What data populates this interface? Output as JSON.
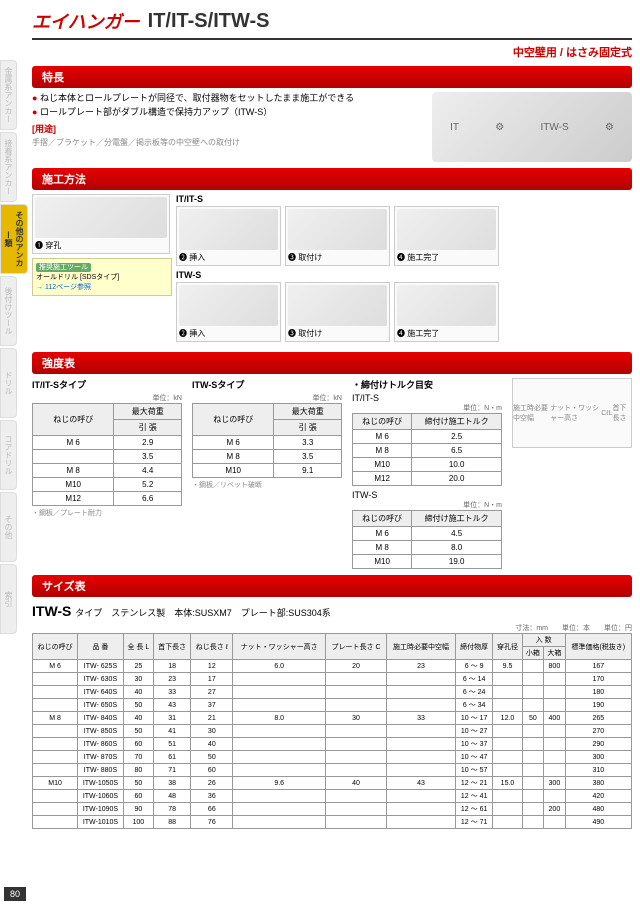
{
  "page_number": "80",
  "header": {
    "logo": "エイハンガー",
    "model": "IT/IT-S/ITW-S",
    "subtitle": "中空壁用 / はさみ固定式"
  },
  "side_tabs": {
    "items": [
      "金属系アンカー",
      "接着系アンカー",
      "その他のアンカー類",
      "後付けツール",
      "ドリル",
      "コアドリル",
      "その他",
      "索引"
    ],
    "active_index": 2
  },
  "sections": {
    "features": "特長",
    "method": "施工方法",
    "strength": "強度表",
    "size": "サイズ表"
  },
  "features": {
    "items": [
      "ねじ本体とロールプレートが同径で、取付器物をセットしたまま施工ができる",
      "ロールプレート部がダブル構造で保持力アップ（ITW-S）"
    ],
    "usage_label": "[用途]",
    "usage_text": "手摺／ブラケット／分電盤／掲示板等の中空壁への取付け",
    "img_labels": {
      "it": "IT",
      "itws": "ITW-S"
    }
  },
  "method": {
    "row1_label": "IT/IT-S",
    "row2_label": "ITW-S",
    "steps_a": [
      "❶ 穿孔",
      "❷ 挿入",
      "❸ 取付け",
      "❹ 施工完了"
    ],
    "steps_b": [
      "❷ 挿入",
      "❸ 取付け",
      "❹ 施工完了"
    ],
    "tool": {
      "tag": "推奨施工ツール",
      "text": "オールドリル [SDSタイプ]",
      "ref": "→ 112ページ参照"
    }
  },
  "strength": {
    "colors": {
      "header_bg": "#eeeeee",
      "border": "#999999"
    },
    "it_table": {
      "title": "IT/IT-Sタイプ",
      "unit": "単位：kN",
      "headers": [
        "ねじの呼び",
        "最大荷重",
        "引 張"
      ],
      "rows": [
        [
          "M 6",
          "2.9"
        ],
        [
          "",
          "3.5"
        ],
        [
          "M 8",
          "4.4"
        ],
        [
          "M10",
          "5.2"
        ],
        [
          "M12",
          "6.6"
        ]
      ],
      "note": "・鋼板／プレート耐力"
    },
    "itw_table": {
      "title": "ITW-Sタイプ",
      "unit": "単位：kN",
      "rows": [
        [
          "M 6",
          "3.3"
        ],
        [
          "M 8",
          "3.5"
        ],
        [
          "M10",
          "9.1"
        ]
      ],
      "note": "・鋼板／リベット破断"
    },
    "torque_it": {
      "title": "・締付けトルク目安",
      "subtitle": "IT/IT-S",
      "unit": "単位：N・m",
      "headers": [
        "ねじの呼び",
        "締付け施工トルク"
      ],
      "rows": [
        [
          "M 6",
          "2.5"
        ],
        [
          "M 8",
          "6.5"
        ],
        [
          "M10",
          "10.0"
        ],
        [
          "M12",
          "20.0"
        ]
      ]
    },
    "torque_itw": {
      "subtitle": "ITW-S",
      "unit": "単位：N・m",
      "rows": [
        [
          "M 6",
          "4.5"
        ],
        [
          "M 8",
          "8.0"
        ],
        [
          "M10",
          "19.0"
        ]
      ]
    },
    "diagram_labels": [
      "施工時必要中空幅",
      "ナット・ワッシャー高さ",
      "C",
      "ℓ",
      "L",
      "首下長さ"
    ]
  },
  "size": {
    "title": "ITW-S",
    "title_suffix": "タイプ　ステンレス製　本体:SUSXM7　プレート部:SUS304系",
    "units": "寸法：mm　　単位：本　　単位：円",
    "headers": [
      "ねじの呼び",
      "品 番",
      "全 長 L",
      "首下長さ",
      "ねじ長さ ℓ",
      "ナット・ワッシャー高さ",
      "プレート長さ C",
      "施工時必要中空幅",
      "締付物厚",
      "穿孔径",
      "小箱",
      "大箱",
      "標準価格(税抜き)"
    ],
    "header_group": "入 数",
    "rows": [
      {
        "size": "M 6",
        "code": "ITW- 625S",
        "L": "25",
        "kubi": "18",
        "neji": "12",
        "nw": "6.0",
        "C": "20",
        "kuu": "23",
        "atsu": "6 ～ 9",
        "kei": "9.5",
        "s": "",
        "l": "800",
        "price": "167"
      },
      {
        "size": "",
        "code": "ITW- 630S",
        "L": "30",
        "kubi": "23",
        "neji": "17",
        "nw": "",
        "C": "",
        "kuu": "",
        "atsu": "6 ～ 14",
        "kei": "",
        "s": "",
        "l": "",
        "price": "170"
      },
      {
        "size": "",
        "code": "ITW- 640S",
        "L": "40",
        "kubi": "33",
        "neji": "27",
        "nw": "",
        "C": "",
        "kuu": "",
        "atsu": "6 ～ 24",
        "kei": "",
        "s": "",
        "l": "",
        "price": "180"
      },
      {
        "size": "",
        "code": "ITW- 650S",
        "L": "50",
        "kubi": "43",
        "neji": "37",
        "nw": "",
        "C": "",
        "kuu": "",
        "atsu": "6 ～ 34",
        "kei": "",
        "s": "",
        "l": "",
        "price": "190"
      },
      {
        "size": "M 8",
        "code": "ITW- 840S",
        "L": "40",
        "kubi": "31",
        "neji": "21",
        "nw": "8.0",
        "C": "30",
        "kuu": "33",
        "atsu": "10 ～ 17",
        "kei": "12.0",
        "s": "50",
        "l": "400",
        "price": "265"
      },
      {
        "size": "",
        "code": "ITW- 850S",
        "L": "50",
        "kubi": "41",
        "neji": "30",
        "nw": "",
        "C": "",
        "kuu": "",
        "atsu": "10 ～ 27",
        "kei": "",
        "s": "",
        "l": "",
        "price": "270"
      },
      {
        "size": "",
        "code": "ITW- 860S",
        "L": "60",
        "kubi": "51",
        "neji": "40",
        "nw": "",
        "C": "",
        "kuu": "",
        "atsu": "10 ～ 37",
        "kei": "",
        "s": "",
        "l": "",
        "price": "290"
      },
      {
        "size": "",
        "code": "ITW- 870S",
        "L": "70",
        "kubi": "61",
        "neji": "50",
        "nw": "",
        "C": "",
        "kuu": "",
        "atsu": "10 ～ 47",
        "kei": "",
        "s": "",
        "l": "",
        "price": "300"
      },
      {
        "size": "",
        "code": "ITW- 880S",
        "L": "80",
        "kubi": "71",
        "neji": "60",
        "nw": "",
        "C": "",
        "kuu": "",
        "atsu": "10 ～ 57",
        "kei": "",
        "s": "",
        "l": "",
        "price": "310"
      },
      {
        "size": "M10",
        "code": "ITW-1050S",
        "L": "50",
        "kubi": "38",
        "neji": "26",
        "nw": "9.6",
        "C": "40",
        "kuu": "43",
        "atsu": "12 ～ 21",
        "kei": "15.0",
        "s": "",
        "l": "300",
        "price": "380"
      },
      {
        "size": "",
        "code": "ITW-1060S",
        "L": "60",
        "kubi": "48",
        "neji": "36",
        "nw": "",
        "C": "",
        "kuu": "",
        "atsu": "12 ～ 41",
        "kei": "",
        "s": "",
        "l": "",
        "price": "420"
      },
      {
        "size": "",
        "code": "ITW-1090S",
        "L": "90",
        "kubi": "78",
        "neji": "66",
        "nw": "",
        "C": "",
        "kuu": "",
        "atsu": "12 ～ 61",
        "kei": "",
        "s": "",
        "l": "200",
        "price": "480"
      },
      {
        "size": "",
        "code": "ITW-1010S",
        "L": "100",
        "kubi": "88",
        "neji": "76",
        "nw": "",
        "C": "",
        "kuu": "",
        "atsu": "12 ～ 71",
        "kei": "",
        "s": "",
        "l": "",
        "price": "490"
      }
    ]
  }
}
